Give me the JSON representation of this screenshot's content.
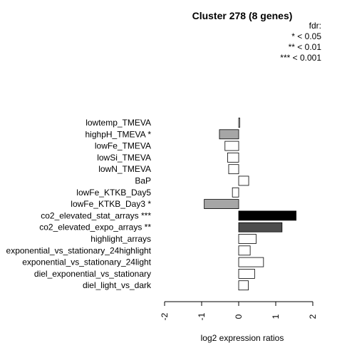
{
  "chart_data": {
    "type": "bar",
    "orientation": "horizontal",
    "title": "Cluster 278 (8 genes)",
    "legend": {
      "title": "fdr:",
      "entries": [
        "* < 0.05",
        "** < 0.01",
        "*** < 0.001"
      ],
      "placement": "top-right"
    },
    "categories": [
      "lowtemp_TMEVA",
      "highpH_TMEVA *",
      "lowFe_TMEVA",
      "lowSi_TMEVA",
      "lowN_TMEVA",
      "BaP",
      "lowFe_KTKB_Day5",
      "lowFe_KTKB_Day3 *",
      "co2_elevated_stat_arrays ***",
      "co2_elevated_expo_arrays **",
      "highlight_arrays",
      "exponential_vs_stationary_24highlight",
      "exponential_vs_stationary_24light",
      "diel_exponential_vs_stationary",
      "diel_light_vs_dark"
    ],
    "values": [
      0.03,
      -0.52,
      -0.37,
      -0.3,
      -0.27,
      0.27,
      -0.17,
      -0.93,
      1.55,
      1.17,
      0.47,
      0.31,
      0.67,
      0.43,
      0.26
    ],
    "bar_colors": [
      "#ffffff",
      "#a6a6a6",
      "#ffffff",
      "#ffffff",
      "#ffffff",
      "#ffffff",
      "#ffffff",
      "#a6a6a6",
      "#000000",
      "#4d4d4d",
      "#ffffff",
      "#ffffff",
      "#ffffff",
      "#ffffff",
      "#ffffff"
    ],
    "xlabel": "log2 expression ratios",
    "ylabel": "",
    "xlim": [
      -2,
      2
    ],
    "xticks": [
      -2,
      -1,
      0,
      1,
      2
    ],
    "xtick_labels": [
      "-2",
      "-1",
      "0",
      "1",
      "2"
    ],
    "grid": false
  }
}
